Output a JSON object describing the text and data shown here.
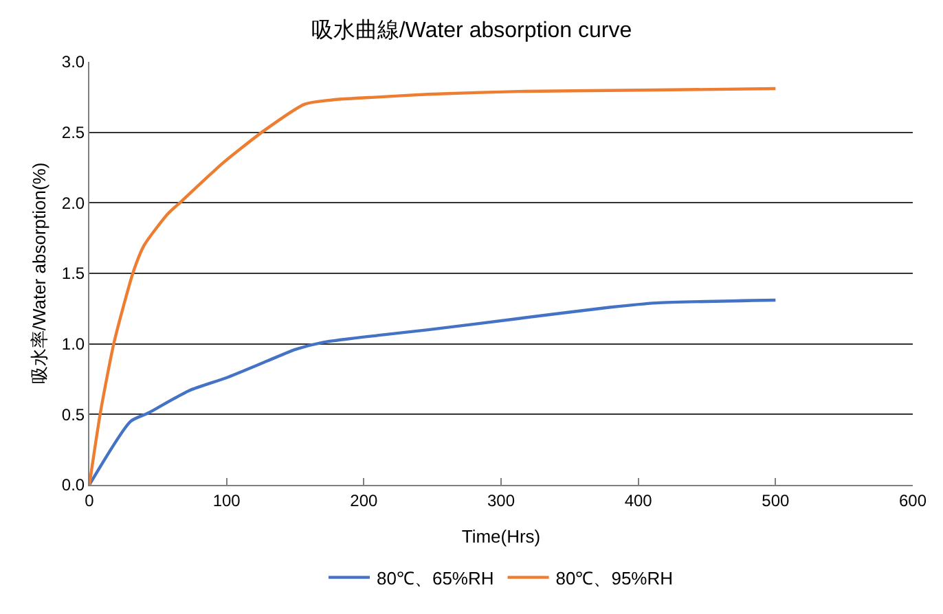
{
  "chart_data": {
    "type": "line",
    "title": "吸水曲線/Water absorption curve",
    "xlabel": "Time(Hrs)",
    "ylabel": "吸水率/Water absorption(%)",
    "xlim": [
      0,
      600
    ],
    "xticks": [
      0,
      100,
      200,
      300,
      400,
      500,
      600
    ],
    "ylim": [
      0,
      3.0
    ],
    "yticks": [
      {
        "value": 0,
        "label": "0.0"
      },
      {
        "value": 0.5,
        "label": "0.5"
      },
      {
        "value": 1,
        "label": "1.0"
      },
      {
        "value": 1.5,
        "label": "1.5"
      },
      {
        "value": 2,
        "label": "2.0"
      },
      {
        "value": 2.5,
        "label": "2.5"
      },
      {
        "value": 3,
        "label": "3.0"
      }
    ],
    "grid": "y",
    "legend": "bottom",
    "marker": "none",
    "line_style": "solid",
    "series": [
      {
        "name": "80℃、65%RH",
        "color": "#4472c4",
        "x": [
          0,
          30,
          43,
          73,
          100,
          130,
          150,
          170,
          210,
          247,
          313,
          380,
          413,
          500
        ],
        "values": [
          0,
          0.45,
          0.51,
          0.67,
          0.76,
          0.88,
          0.96,
          1.01,
          1.06,
          1.1,
          1.18,
          1.26,
          1.29,
          1.31
        ]
      },
      {
        "name": "80℃、95%RH",
        "color": "#ed7d31",
        "x": [
          0,
          8,
          18,
          32,
          40,
          57,
          67,
          97,
          127,
          157,
          177,
          210,
          247,
          313,
          413,
          500
        ],
        "values": [
          0,
          0.51,
          1.01,
          1.51,
          1.7,
          1.92,
          2.01,
          2.28,
          2.51,
          2.7,
          2.73,
          2.75,
          2.77,
          2.79,
          2.8,
          2.81
        ]
      }
    ]
  }
}
